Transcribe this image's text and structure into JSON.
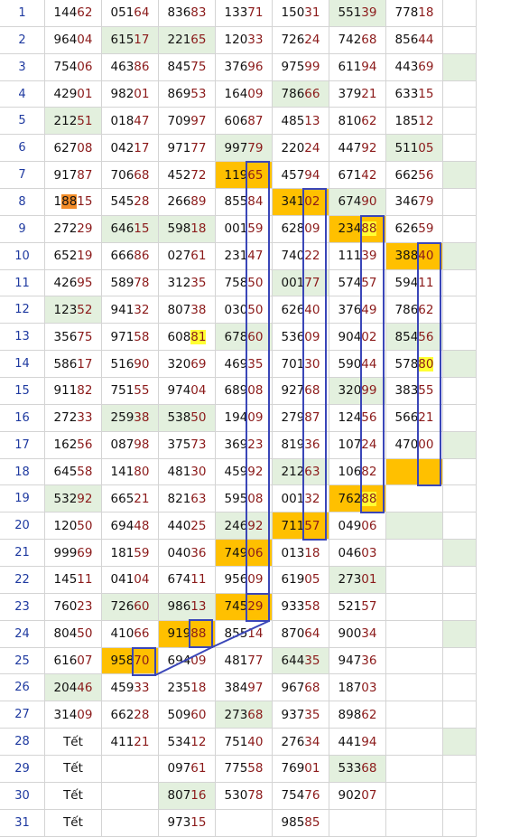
{
  "table": {
    "rows": [
      {
        "n": "1",
        "c": [
          {
            "v": "14462"
          },
          {
            "v": "05164"
          },
          {
            "v": "83683"
          },
          {
            "v": "13371"
          },
          {
            "v": "15031"
          },
          {
            "v": "55139",
            "b": "g"
          },
          {
            "v": "77818"
          },
          {
            "v": ""
          }
        ]
      },
      {
        "n": "2",
        "c": [
          {
            "v": "96404"
          },
          {
            "v": "61517",
            "b": "g"
          },
          {
            "v": "22165",
            "b": "g"
          },
          {
            "v": "12033"
          },
          {
            "v": "72624"
          },
          {
            "v": "74268"
          },
          {
            "v": "85644"
          },
          {
            "v": ""
          }
        ]
      },
      {
        "n": "3",
        "c": [
          {
            "v": "75406"
          },
          {
            "v": "46386"
          },
          {
            "v": "84575"
          },
          {
            "v": "37696"
          },
          {
            "v": "97599"
          },
          {
            "v": "61194"
          },
          {
            "v": "44369"
          },
          {
            "v": "",
            "b": "g"
          }
        ]
      },
      {
        "n": "4",
        "c": [
          {
            "v": "42901"
          },
          {
            "v": "98201"
          },
          {
            "v": "86953"
          },
          {
            "v": "16409"
          },
          {
            "v": "78666",
            "b": "g"
          },
          {
            "v": "37921"
          },
          {
            "v": "63315"
          },
          {
            "v": ""
          }
        ]
      },
      {
        "n": "5",
        "c": [
          {
            "v": "21251",
            "b": "g"
          },
          {
            "v": "01847"
          },
          {
            "v": "70997"
          },
          {
            "v": "60687"
          },
          {
            "v": "48513"
          },
          {
            "v": "81062"
          },
          {
            "v": "18512"
          },
          {
            "v": ""
          }
        ]
      },
      {
        "n": "6",
        "c": [
          {
            "v": "62708"
          },
          {
            "v": "04217"
          },
          {
            "v": "97177"
          },
          {
            "v": "99779",
            "b": "g"
          },
          {
            "v": "22024"
          },
          {
            "v": "44792"
          },
          {
            "v": "51105",
            "b": "g"
          },
          {
            "v": ""
          }
        ]
      },
      {
        "n": "7",
        "c": [
          {
            "v": "91787"
          },
          {
            "v": "70668"
          },
          {
            "v": "45272"
          },
          {
            "v": "11965",
            "b": "o"
          },
          {
            "v": "45794"
          },
          {
            "v": "67142"
          },
          {
            "v": "66256"
          },
          {
            "v": "",
            "b": "g"
          }
        ]
      },
      {
        "n": "8",
        "c": [
          {
            "v": "18815",
            "h": "o"
          },
          {
            "v": "54528"
          },
          {
            "v": "26689"
          },
          {
            "v": "85584"
          },
          {
            "v": "34102",
            "b": "o"
          },
          {
            "v": "67490",
            "b": "g"
          },
          {
            "v": "34679"
          },
          {
            "v": ""
          }
        ]
      },
      {
        "n": "9",
        "c": [
          {
            "v": "27229"
          },
          {
            "v": "64615",
            "b": "g"
          },
          {
            "v": "59818",
            "b": "g"
          },
          {
            "v": "00159"
          },
          {
            "v": "62809"
          },
          {
            "v": "23488",
            "b": "o",
            "h": "y"
          },
          {
            "v": "62659"
          },
          {
            "v": ""
          }
        ]
      },
      {
        "n": "10",
        "c": [
          {
            "v": "65219"
          },
          {
            "v": "66686"
          },
          {
            "v": "02761"
          },
          {
            "v": "23147"
          },
          {
            "v": "74022"
          },
          {
            "v": "11139"
          },
          {
            "v": "38840",
            "b": "o"
          },
          {
            "v": "",
            "b": "g"
          }
        ]
      },
      {
        "n": "11",
        "c": [
          {
            "v": "42695"
          },
          {
            "v": "58978"
          },
          {
            "v": "31235"
          },
          {
            "v": "75850"
          },
          {
            "v": "00177",
            "b": "g"
          },
          {
            "v": "57457"
          },
          {
            "v": "59411"
          },
          {
            "v": ""
          }
        ]
      },
      {
        "n": "12",
        "c": [
          {
            "v": "12352",
            "b": "g"
          },
          {
            "v": "94132"
          },
          {
            "v": "80738"
          },
          {
            "v": "03050"
          },
          {
            "v": "62640"
          },
          {
            "v": "37649"
          },
          {
            "v": "78662"
          },
          {
            "v": ""
          }
        ]
      },
      {
        "n": "13",
        "c": [
          {
            "v": "35675"
          },
          {
            "v": "97158"
          },
          {
            "v": "60881",
            "h": "y"
          },
          {
            "v": "67860",
            "b": "g"
          },
          {
            "v": "53609"
          },
          {
            "v": "90402"
          },
          {
            "v": "85456",
            "b": "g"
          },
          {
            "v": ""
          }
        ]
      },
      {
        "n": "14",
        "c": [
          {
            "v": "58617"
          },
          {
            "v": "51690"
          },
          {
            "v": "32069"
          },
          {
            "v": "46935"
          },
          {
            "v": "70130"
          },
          {
            "v": "59044"
          },
          {
            "v": "57880",
            "h": "y"
          },
          {
            "v": "",
            "b": "g"
          }
        ]
      },
      {
        "n": "15",
        "c": [
          {
            "v": "91182"
          },
          {
            "v": "75155"
          },
          {
            "v": "97404"
          },
          {
            "v": "68908"
          },
          {
            "v": "92768"
          },
          {
            "v": "32099",
            "b": "g"
          },
          {
            "v": "38355"
          },
          {
            "v": ""
          }
        ]
      },
      {
        "n": "16",
        "c": [
          {
            "v": "27233"
          },
          {
            "v": "25938",
            "b": "g"
          },
          {
            "v": "53850",
            "b": "g"
          },
          {
            "v": "19409"
          },
          {
            "v": "27987"
          },
          {
            "v": "12456"
          },
          {
            "v": "56621"
          },
          {
            "v": ""
          }
        ]
      },
      {
        "n": "17",
        "c": [
          {
            "v": "16256"
          },
          {
            "v": "08798"
          },
          {
            "v": "37573"
          },
          {
            "v": "36923"
          },
          {
            "v": "81936"
          },
          {
            "v": "10724"
          },
          {
            "v": "47000"
          },
          {
            "v": "",
            "b": "g"
          }
        ]
      },
      {
        "n": "18",
        "c": [
          {
            "v": "64558"
          },
          {
            "v": "14180"
          },
          {
            "v": "48130"
          },
          {
            "v": "45992"
          },
          {
            "v": "21263",
            "b": "g"
          },
          {
            "v": "10682"
          },
          {
            "v": "",
            "b": "o"
          },
          {
            "v": ""
          }
        ]
      },
      {
        "n": "19",
        "c": [
          {
            "v": "53292",
            "b": "g"
          },
          {
            "v": "66521"
          },
          {
            "v": "82163"
          },
          {
            "v": "59508"
          },
          {
            "v": "00132"
          },
          {
            "v": "76288",
            "b": "o",
            "h": "y"
          },
          {
            "v": ""
          },
          {
            "v": ""
          }
        ]
      },
      {
        "n": "20",
        "c": [
          {
            "v": "12050"
          },
          {
            "v": "69448"
          },
          {
            "v": "44025"
          },
          {
            "v": "24692",
            "b": "g"
          },
          {
            "v": "71157",
            "b": "o"
          },
          {
            "v": "04906"
          },
          {
            "v": "",
            "b": "g"
          },
          {
            "v": ""
          }
        ]
      },
      {
        "n": "21",
        "c": [
          {
            "v": "99969"
          },
          {
            "v": "18159"
          },
          {
            "v": "04036"
          },
          {
            "v": "74906",
            "b": "o"
          },
          {
            "v": "01318"
          },
          {
            "v": "04603"
          },
          {
            "v": ""
          },
          {
            "v": "",
            "b": "g"
          }
        ]
      },
      {
        "n": "22",
        "c": [
          {
            "v": "14511"
          },
          {
            "v": "04104"
          },
          {
            "v": "67411"
          },
          {
            "v": "95609"
          },
          {
            "v": "61905"
          },
          {
            "v": "27301",
            "b": "g"
          },
          {
            "v": ""
          },
          {
            "v": ""
          }
        ]
      },
      {
        "n": "23",
        "c": [
          {
            "v": "76023"
          },
          {
            "v": "72660",
            "b": "g"
          },
          {
            "v": "98613",
            "b": "g"
          },
          {
            "v": "74529",
            "b": "o"
          },
          {
            "v": "93358"
          },
          {
            "v": "52157"
          },
          {
            "v": ""
          },
          {
            "v": ""
          }
        ]
      },
      {
        "n": "24",
        "c": [
          {
            "v": "80450"
          },
          {
            "v": "41066"
          },
          {
            "v": "91988",
            "b": "o"
          },
          {
            "v": "85514"
          },
          {
            "v": "87064"
          },
          {
            "v": "90034"
          },
          {
            "v": ""
          },
          {
            "v": "",
            "b": "g"
          }
        ]
      },
      {
        "n": "25",
        "c": [
          {
            "v": "61607"
          },
          {
            "v": "95870",
            "b": "o"
          },
          {
            "v": "69409"
          },
          {
            "v": "48177"
          },
          {
            "v": "64435",
            "b": "g"
          },
          {
            "v": "94736"
          },
          {
            "v": ""
          },
          {
            "v": ""
          }
        ]
      },
      {
        "n": "26",
        "c": [
          {
            "v": "20446",
            "b": "g"
          },
          {
            "v": "45933"
          },
          {
            "v": "23518"
          },
          {
            "v": "38497"
          },
          {
            "v": "96768"
          },
          {
            "v": "18703"
          },
          {
            "v": ""
          },
          {
            "v": ""
          }
        ]
      },
      {
        "n": "27",
        "c": [
          {
            "v": "31409"
          },
          {
            "v": "66228"
          },
          {
            "v": "50960"
          },
          {
            "v": "27368",
            "b": "g"
          },
          {
            "v": "93735"
          },
          {
            "v": "89862"
          },
          {
            "v": ""
          },
          {
            "v": ""
          }
        ]
      },
      {
        "n": "28",
        "c": [
          {
            "v": "Tết",
            "s": "1"
          },
          {
            "v": "41121"
          },
          {
            "v": "53412"
          },
          {
            "v": "75140"
          },
          {
            "v": "27634"
          },
          {
            "v": "44194"
          },
          {
            "v": ""
          },
          {
            "v": "",
            "b": "g"
          }
        ]
      },
      {
        "n": "29",
        "c": [
          {
            "v": "Tết",
            "s": "1"
          },
          {
            "v": ""
          },
          {
            "v": "09761"
          },
          {
            "v": "77558"
          },
          {
            "v": "76901"
          },
          {
            "v": "53368",
            "b": "g"
          },
          {
            "v": ""
          },
          {
            "v": ""
          }
        ]
      },
      {
        "n": "30",
        "c": [
          {
            "v": "Tết",
            "s": "1"
          },
          {
            "v": ""
          },
          {
            "v": "80716",
            "b": "g"
          },
          {
            "v": "53078"
          },
          {
            "v": "75476"
          },
          {
            "v": "90207"
          },
          {
            "v": ""
          },
          {
            "v": ""
          }
        ]
      },
      {
        "n": "31",
        "c": [
          {
            "v": "Tết",
            "s": "1"
          },
          {
            "v": ""
          },
          {
            "v": "97315"
          },
          {
            "v": ""
          },
          {
            "v": "98585"
          },
          {
            "v": ""
          },
          {
            "v": ""
          },
          {
            "v": ""
          }
        ]
      }
    ]
  },
  "colors": {
    "green_cell": "#e3f0de",
    "orange_cell": "#ffc000",
    "yellow_highlight": "#ffff33",
    "orange_highlight": "#f28c28",
    "row_number": "#1f3aa0",
    "tail_digits": "#8b1a1a",
    "annotation_line": "#3a46b8"
  }
}
